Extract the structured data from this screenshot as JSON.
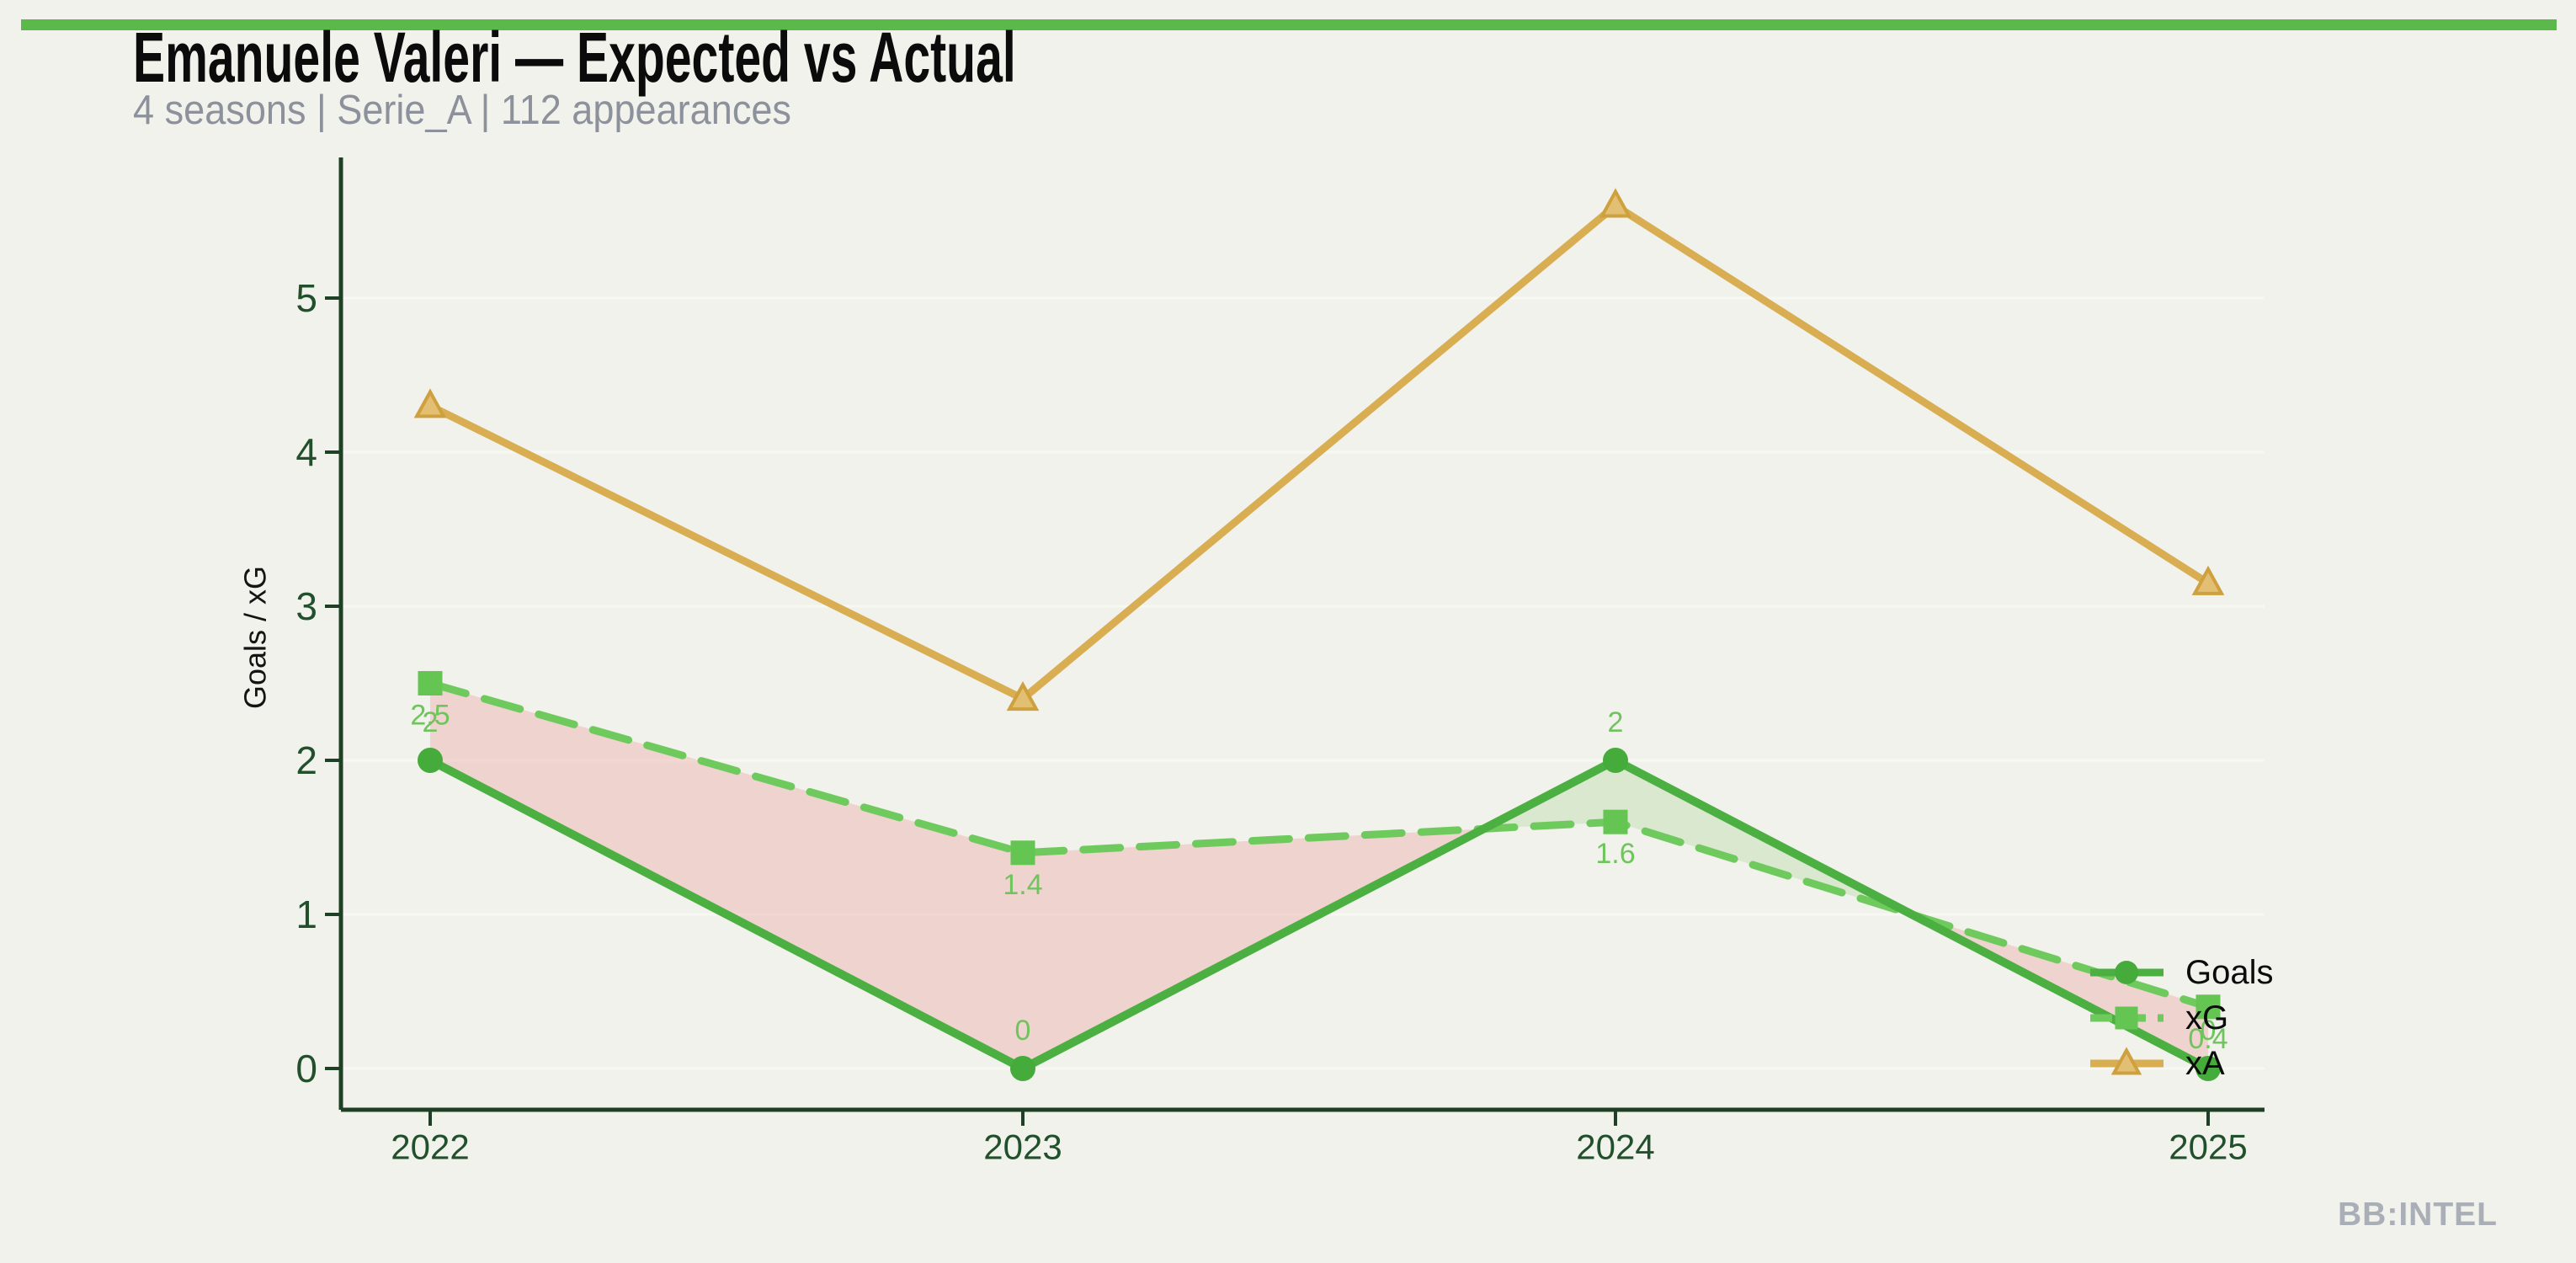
{
  "page": {
    "background": "#f1f2eb",
    "accent_bar_color": "#5bb84b",
    "watermark": "BB:INTEL",
    "watermark_color": "#a9aeb7"
  },
  "header": {
    "title": "Emanuele Valeri — Expected vs Actual",
    "subtitle": "4 seasons | Serie_A | 112 appearances"
  },
  "chart_data": {
    "type": "line",
    "title": "Emanuele Valeri — Expected vs Actual",
    "x": [
      2022,
      2023,
      2024,
      2025
    ],
    "xticks": [
      "2022",
      "2023",
      "2024",
      "2025"
    ],
    "yticks": [
      0,
      1,
      2,
      3,
      4,
      5
    ],
    "ylim": [
      -0.3,
      5.9
    ],
    "xlabel": "",
    "ylabel": "Goals / xG",
    "grid": true,
    "series": [
      {
        "name": "Goals",
        "values": [
          2,
          0,
          2,
          0
        ],
        "color": "#4bb041",
        "marker": "circle",
        "marker_color": "#45ab3b",
        "line_style": "solid",
        "point_labels": true,
        "label_position": "above"
      },
      {
        "name": "xG",
        "values": [
          2.5,
          1.4,
          1.6,
          0.4
        ],
        "color": "#6fca5d",
        "marker": "square",
        "marker_color": "#64c553",
        "line_style": "dashed",
        "point_labels": true,
        "label_position": "below"
      },
      {
        "name": "xA",
        "values": [
          4.3,
          2.4,
          5.6,
          3.15
        ],
        "color": "#d9ae53",
        "marker": "triangle",
        "marker_color": "#e2bf72",
        "marker_stroke": "#cfa03e",
        "line_style": "solid",
        "point_labels": false,
        "label_position": "none"
      }
    ],
    "fill_between": {
      "between": [
        "xG",
        "Goals"
      ],
      "xg_above_color": "rgba(233,140,140,0.30)",
      "goals_above_color": "rgba(132,197,110,0.22)"
    },
    "legend": {
      "entries": [
        "Goals",
        "xG",
        "xA"
      ],
      "position": "lower-right",
      "text_color": "#0c0c0c"
    },
    "style": {
      "axis_color": "#1e4126",
      "tick_label_color": "#23502c",
      "point_label_color": "#70c45e",
      "grid_color": "#f7f8f1",
      "ylabel_color": "#141414"
    }
  }
}
